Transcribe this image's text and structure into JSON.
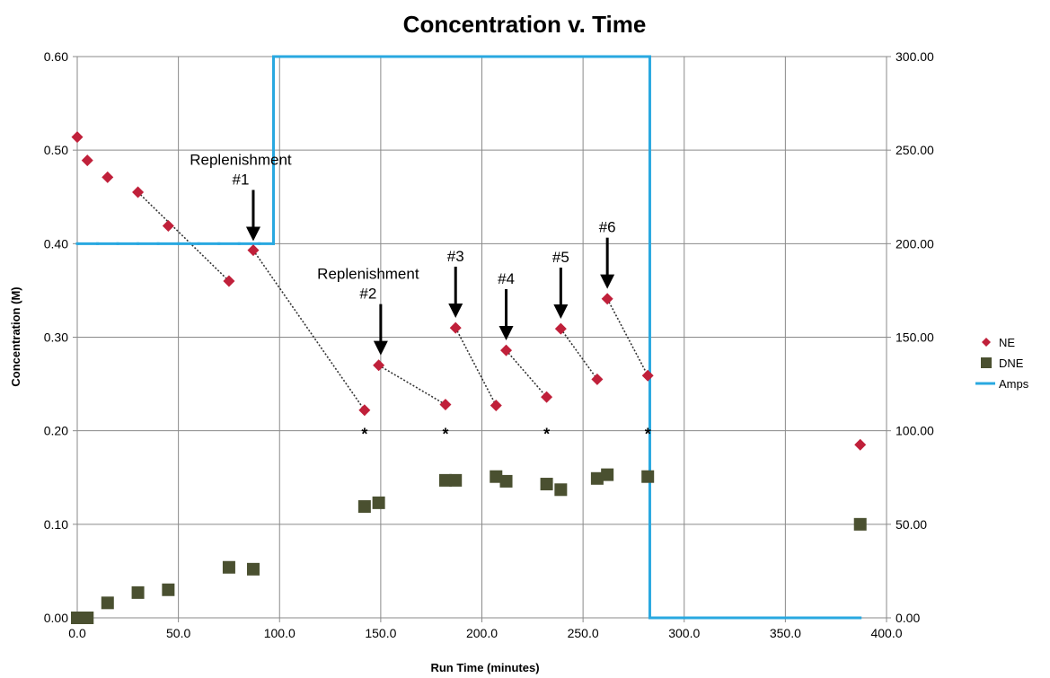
{
  "chart_data": {
    "type": "scatter",
    "title": "Concentration v. Time",
    "xlabel": "Run Time (minutes)",
    "ylabel": "Concentration (M)",
    "y2label": "",
    "xlim": [
      0,
      400
    ],
    "ylim": [
      0,
      0.6
    ],
    "y2lim": [
      0,
      300
    ],
    "x_ticks": [
      "0.0",
      "50.0",
      "100.0",
      "150.0",
      "200.0",
      "250.0",
      "300.0",
      "350.0",
      "400.0"
    ],
    "y_ticks": [
      "0.00",
      "0.10",
      "0.20",
      "0.30",
      "0.40",
      "0.50",
      "0.60"
    ],
    "y2_ticks": [
      "0.00",
      "50.00",
      "100.00",
      "150.00",
      "200.00",
      "250.00",
      "300.00"
    ],
    "grid": true,
    "legend_position": "right",
    "series": [
      {
        "name": "NE",
        "marker": "diamond",
        "color": "#c0203a",
        "axis": "left",
        "points": [
          [
            0,
            0.514
          ],
          [
            5,
            0.489
          ],
          [
            15,
            0.471
          ],
          [
            30,
            0.455
          ],
          [
            45,
            0.419
          ],
          [
            75,
            0.36
          ],
          [
            87,
            0.393
          ],
          [
            142,
            0.222
          ],
          [
            149,
            0.27
          ],
          [
            182,
            0.228
          ],
          [
            187,
            0.31
          ],
          [
            207,
            0.227
          ],
          [
            212,
            0.286
          ],
          [
            232,
            0.236
          ],
          [
            239,
            0.309
          ],
          [
            257,
            0.255
          ],
          [
            262,
            0.341
          ],
          [
            282,
            0.259
          ],
          [
            387,
            0.185
          ]
        ]
      },
      {
        "name": "DNE",
        "marker": "square",
        "color": "#4a5030",
        "axis": "left",
        "points": [
          [
            0,
            0.0
          ],
          [
            5,
            0.0
          ],
          [
            15,
            0.016
          ],
          [
            30,
            0.027
          ],
          [
            45,
            0.03
          ],
          [
            75,
            0.054
          ],
          [
            87,
            0.052
          ],
          [
            142,
            0.119
          ],
          [
            149,
            0.123
          ],
          [
            182,
            0.147
          ],
          [
            187,
            0.147
          ],
          [
            207,
            0.151
          ],
          [
            212,
            0.146
          ],
          [
            232,
            0.143
          ],
          [
            239,
            0.137
          ],
          [
            257,
            0.149
          ],
          [
            262,
            0.153
          ],
          [
            282,
            0.151
          ],
          [
            387,
            0.1
          ]
        ]
      },
      {
        "name": "Amps",
        "marker": "line",
        "color": "#29a8e0",
        "axis": "right",
        "points": [
          [
            0,
            200
          ],
          [
            10,
            200
          ],
          [
            20,
            200
          ],
          [
            30,
            200
          ],
          [
            40,
            200
          ],
          [
            50,
            200
          ],
          [
            60,
            200
          ],
          [
            70,
            200
          ],
          [
            80,
            200
          ],
          [
            90,
            200
          ],
          [
            97,
            200
          ],
          [
            97,
            300
          ],
          [
            100,
            300
          ],
          [
            120,
            300
          ],
          [
            140,
            300
          ],
          [
            160,
            300
          ],
          [
            180,
            300
          ],
          [
            200,
            300
          ],
          [
            220,
            300
          ],
          [
            240,
            300
          ],
          [
            260,
            300
          ],
          [
            283,
            300
          ],
          [
            283,
            0
          ],
          [
            300,
            0
          ],
          [
            320,
            0
          ],
          [
            340,
            0
          ],
          [
            360,
            0
          ],
          [
            387,
            0
          ]
        ]
      }
    ],
    "trend_segments": [
      [
        [
          30,
          0.455
        ],
        [
          75,
          0.36
        ]
      ],
      [
        [
          87,
          0.393
        ],
        [
          142,
          0.222
        ]
      ],
      [
        [
          149,
          0.27
        ],
        [
          182,
          0.228
        ]
      ],
      [
        [
          187,
          0.31
        ],
        [
          207,
          0.227
        ]
      ],
      [
        [
          212,
          0.286
        ],
        [
          232,
          0.236
        ]
      ],
      [
        [
          239,
          0.309
        ],
        [
          257,
          0.255
        ]
      ],
      [
        [
          262,
          0.341
        ],
        [
          282,
          0.259
        ]
      ]
    ],
    "stars": [
      {
        "x": 142,
        "y": 0.2,
        "text": "*"
      },
      {
        "x": 182,
        "y": 0.2,
        "text": "*"
      },
      {
        "x": 232,
        "y": 0.2,
        "text": "*"
      },
      {
        "x": 282,
        "y": 0.2,
        "text": "*"
      }
    ],
    "annotations": [
      {
        "lines": [
          "Replenishment",
          "#1"
        ],
        "x": 87,
        "y": 0.395
      },
      {
        "lines": [
          "Replenishment",
          "#2"
        ],
        "x": 150,
        "y": 0.273
      },
      {
        "lines": [
          "#3"
        ],
        "x": 187,
        "y": 0.313
      },
      {
        "lines": [
          "#4"
        ],
        "x": 212,
        "y": 0.289
      },
      {
        "lines": [
          "#5"
        ],
        "x": 239,
        "y": 0.312
      },
      {
        "lines": [
          "#6"
        ],
        "x": 262,
        "y": 0.344
      }
    ]
  }
}
